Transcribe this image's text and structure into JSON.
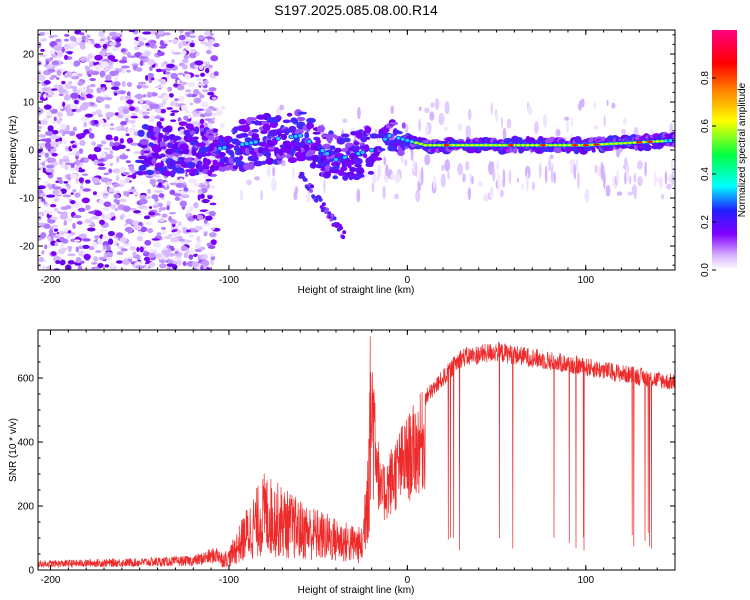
{
  "title": "S197.2025.085.08.00.R14",
  "chart_data": [
    {
      "type": "heatmap",
      "xlabel": "Height of straight line (km)",
      "ylabel": "Frequency (Hz)",
      "xlim": [
        -207,
        150
      ],
      "ylim": [
        -25,
        25
      ],
      "xticks": [
        -200,
        -100,
        0,
        100
      ],
      "yticks": [
        -20,
        -10,
        0,
        10,
        20
      ],
      "colorbar": {
        "label": "Normalized spectral amplitude",
        "range": [
          0,
          1
        ],
        "ticks": [
          0.0,
          0.2,
          0.4,
          0.6,
          0.8
        ],
        "colors": [
          "#ffffff",
          "#d9b3ff",
          "#8000ff",
          "#2020ff",
          "#00ffff",
          "#00ff40",
          "#ffff00",
          "#ff8000",
          "#ff0000",
          "#ff0080"
        ]
      },
      "ridge": [
        {
          "x": -110,
          "y": 0
        },
        {
          "x": -80,
          "y": 2
        },
        {
          "x": -60,
          "y": 3
        },
        {
          "x": -40,
          "y": -2
        },
        {
          "x": -20,
          "y": 0
        },
        {
          "x": -10,
          "y": 3
        },
        {
          "x": 0,
          "y": 2
        },
        {
          "x": 10,
          "y": 1
        },
        {
          "x": 100,
          "y": 1
        },
        {
          "x": 150,
          "y": 2
        }
      ],
      "branch": [
        {
          "x": -60,
          "y": -5
        },
        {
          "x": -45,
          "y": -13
        },
        {
          "x": -35,
          "y": -18
        }
      ]
    },
    {
      "type": "line",
      "xlabel": "Height of straight line (km)",
      "ylabel": "SNR (10 * v/v)",
      "xlim": [
        -207,
        150
      ],
      "ylim": [
        0,
        750
      ],
      "xticks": [
        -200,
        -100,
        0,
        100
      ],
      "yticks": [
        0,
        200,
        400,
        600
      ],
      "color": "#ee2a2a",
      "envelope": [
        {
          "x": -207,
          "y": 20
        },
        {
          "x": -150,
          "y": 25
        },
        {
          "x": -120,
          "y": 30
        },
        {
          "x": -100,
          "y": 60
        },
        {
          "x": -90,
          "y": 180
        },
        {
          "x": -80,
          "y": 280
        },
        {
          "x": -60,
          "y": 200
        },
        {
          "x": -40,
          "y": 150
        },
        {
          "x": -25,
          "y": 120
        },
        {
          "x": -20,
          "y": 750
        },
        {
          "x": -15,
          "y": 300
        },
        {
          "x": -5,
          "y": 420
        },
        {
          "x": 10,
          "y": 550
        },
        {
          "x": 30,
          "y": 680
        },
        {
          "x": 50,
          "y": 700
        },
        {
          "x": 80,
          "y": 670
        },
        {
          "x": 110,
          "y": 640
        },
        {
          "x": 150,
          "y": 600
        }
      ]
    }
  ]
}
